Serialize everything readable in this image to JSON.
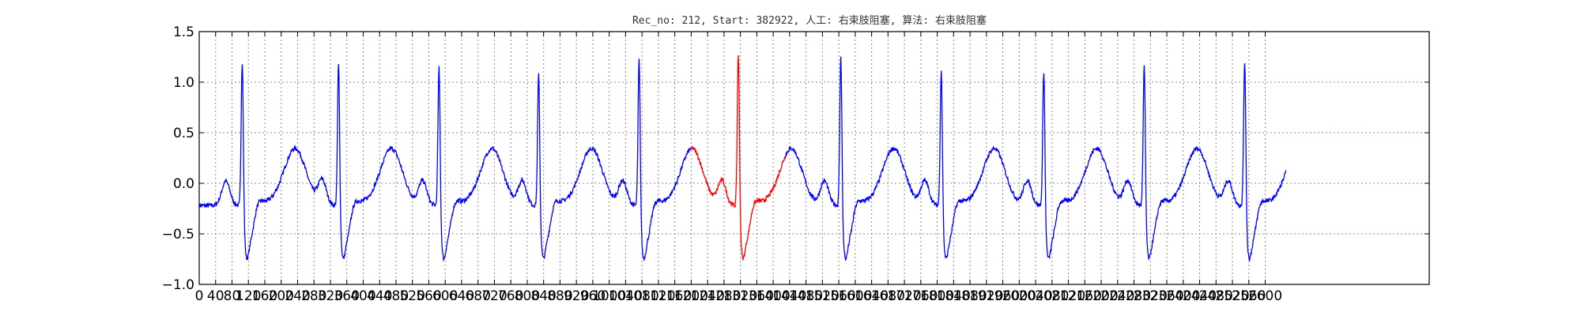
{
  "chart_data": {
    "type": "line",
    "title": "Rec_no: 212, Start: 382922, 人工: 右束肢阻塞, 算法: 右束肢阻塞",
    "xlabel": "",
    "ylabel": "",
    "xlim": [
      0,
      3000
    ],
    "ylim": [
      -1.0,
      1.5
    ],
    "yticks": [
      1.5,
      1.0,
      0.5,
      0.0,
      -0.5,
      -1.0
    ],
    "ytick_labels": [
      "1.5",
      "1.0",
      "0.5",
      "0.0",
      "−0.5",
      "−1.0"
    ],
    "xticks": [
      0,
      40,
      80,
      120,
      160,
      200,
      240,
      280,
      320,
      360,
      400,
      440,
      480,
      520,
      560,
      600,
      640,
      680,
      720,
      760,
      800,
      840,
      880,
      920,
      960,
      1000,
      1040,
      1080,
      1120,
      1160,
      1200,
      1240,
      1280,
      1320,
      1360,
      1400,
      1440,
      1480,
      1520,
      1560,
      1600,
      1640,
      1680,
      1720,
      1760,
      1800,
      1840,
      1880,
      1920,
      1960,
      2000,
      2040,
      2080,
      2120,
      2160,
      2200,
      2240,
      2280,
      2320,
      2360,
      2400,
      2440,
      2480,
      2520,
      2560,
      2600
    ],
    "grid": true,
    "beats": [
      {
        "x": 105,
        "peak": 1.28
      },
      {
        "x": 340,
        "peak": 1.25
      },
      {
        "x": 585,
        "peak": 1.22
      },
      {
        "x": 828,
        "peak": 1.15
      },
      {
        "x": 1073,
        "peak": 1.3
      },
      {
        "x": 1315,
        "peak": 1.36
      },
      {
        "x": 1565,
        "peak": 1.32
      },
      {
        "x": 1810,
        "peak": 1.2
      },
      {
        "x": 2060,
        "peak": 1.19
      },
      {
        "x": 2305,
        "peak": 1.24
      },
      {
        "x": 2550,
        "peak": 1.29
      }
    ],
    "series": [
      {
        "color": "#0000ff",
        "x_range": [
          0,
          1200
        ]
      },
      {
        "color": "#ff0000",
        "x_range": [
          1200,
          1430
        ]
      },
      {
        "color": "#0000ff",
        "x_range": [
          1430,
          2650
        ]
      }
    ]
  }
}
